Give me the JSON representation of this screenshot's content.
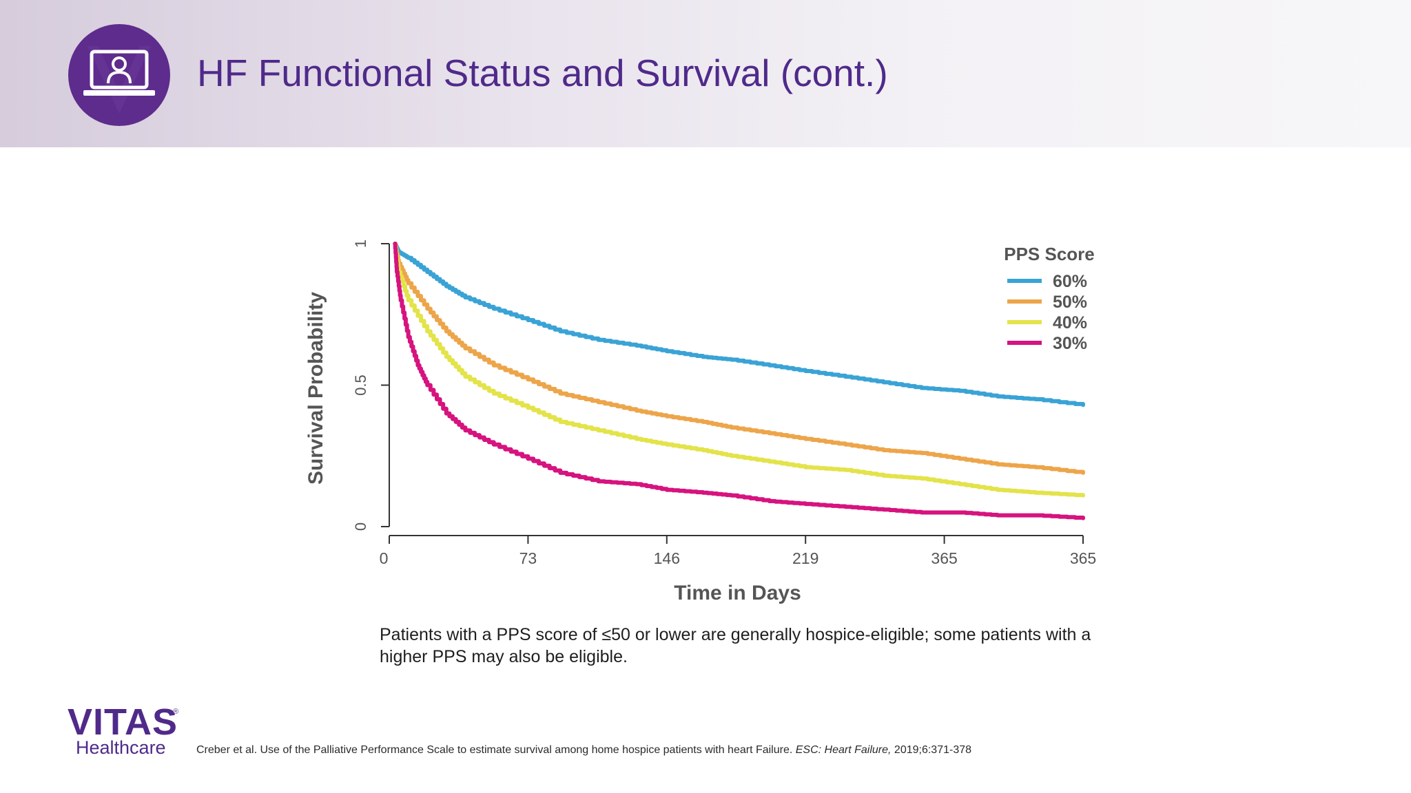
{
  "header": {
    "title": "HF Functional Status and Survival (cont.)",
    "icon": "laptop-user-icon",
    "accent": "#4f2a8a",
    "icon_bg": "#5e2c8c"
  },
  "chart_data": {
    "type": "line",
    "xlabel": "Time in Days",
    "ylabel": "Survival Probability",
    "x_ticks": [
      "0",
      "73",
      "146",
      "219",
      "365",
      "365"
    ],
    "y_ticks": [
      "0",
      "0.5",
      "1"
    ],
    "ylim": [
      0,
      1
    ],
    "legend": {
      "title": "PPS Score",
      "placement": "top-right"
    },
    "series": [
      {
        "name": "60%",
        "color": "#3aa3d6",
        "x": [
          3,
          5,
          10,
          20,
          30,
          40,
          55,
          73,
          90,
          110,
          130,
          146,
          165,
          180,
          200,
          219,
          240,
          260,
          280,
          300,
          320,
          340,
          365
        ],
        "y": [
          1.0,
          0.97,
          0.95,
          0.9,
          0.85,
          0.81,
          0.77,
          0.73,
          0.69,
          0.66,
          0.64,
          0.62,
          0.6,
          0.59,
          0.57,
          0.55,
          0.53,
          0.51,
          0.49,
          0.48,
          0.46,
          0.45,
          0.43
        ]
      },
      {
        "name": "50%",
        "color": "#eda54a",
        "x": [
          3,
          5,
          10,
          20,
          30,
          40,
          55,
          73,
          90,
          110,
          130,
          146,
          165,
          180,
          200,
          219,
          240,
          260,
          280,
          300,
          320,
          340,
          365
        ],
        "y": [
          1.0,
          0.93,
          0.86,
          0.77,
          0.69,
          0.63,
          0.57,
          0.52,
          0.47,
          0.44,
          0.41,
          0.39,
          0.37,
          0.35,
          0.33,
          0.31,
          0.29,
          0.27,
          0.26,
          0.24,
          0.22,
          0.21,
          0.19
        ]
      },
      {
        "name": "40%",
        "color": "#e3e34a",
        "x": [
          3,
          5,
          10,
          20,
          30,
          40,
          55,
          73,
          90,
          110,
          130,
          146,
          165,
          180,
          200,
          219,
          240,
          260,
          280,
          300,
          320,
          340,
          365
        ],
        "y": [
          1.0,
          0.9,
          0.8,
          0.69,
          0.6,
          0.53,
          0.47,
          0.42,
          0.37,
          0.34,
          0.31,
          0.29,
          0.27,
          0.25,
          0.23,
          0.21,
          0.2,
          0.18,
          0.17,
          0.15,
          0.13,
          0.12,
          0.11
        ]
      },
      {
        "name": "30%",
        "color": "#d6137e",
        "x": [
          3,
          4,
          6,
          10,
          15,
          20,
          30,
          40,
          55,
          73,
          90,
          110,
          130,
          146,
          165,
          180,
          200,
          219,
          240,
          260,
          280,
          300,
          320,
          340,
          365
        ],
        "y": [
          1.0,
          0.9,
          0.8,
          0.67,
          0.57,
          0.5,
          0.4,
          0.34,
          0.29,
          0.24,
          0.19,
          0.16,
          0.15,
          0.13,
          0.12,
          0.11,
          0.09,
          0.08,
          0.07,
          0.06,
          0.05,
          0.05,
          0.04,
          0.04,
          0.03
        ]
      }
    ]
  },
  "caption": {
    "text": "Patients with a PPS score of ≤50 or lower are generally hospice-eligible; some patients with a higher PPS may also be eligible."
  },
  "logo": {
    "word": "VITAS",
    "reg": "®",
    "sub": "Healthcare"
  },
  "citation": {
    "text": "Creber et al. Use of the Palliative Performance Scale to estimate survival among home hospice patients with heart Failure. ",
    "journal": "ESC: Heart Failure,",
    "details": " 2019;6:371-378"
  }
}
